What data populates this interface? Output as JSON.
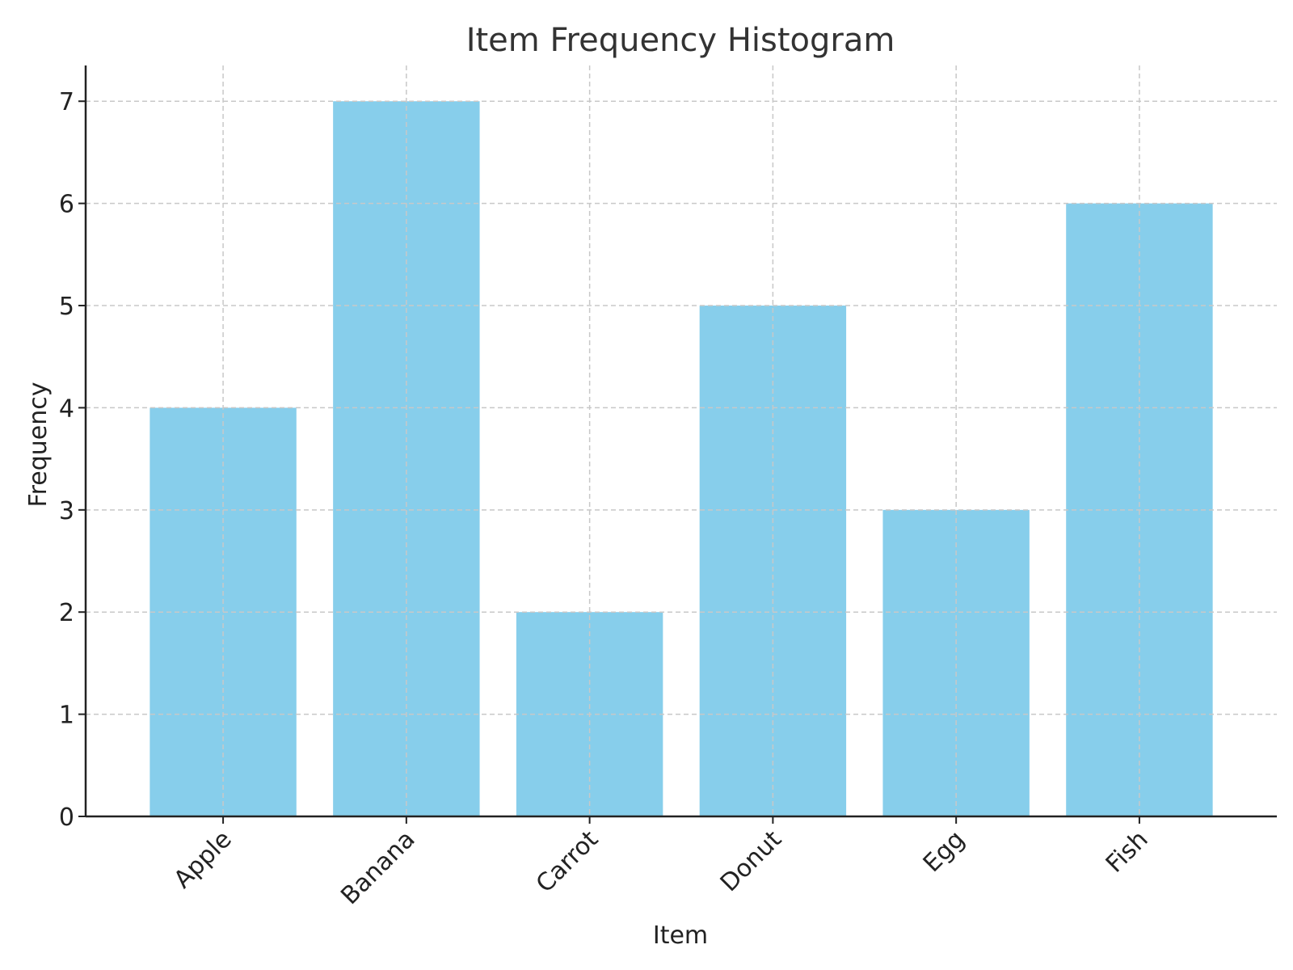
{
  "chart_data": {
    "type": "bar",
    "title": "Item Frequency Histogram",
    "xlabel": "Item",
    "ylabel": "Frequency",
    "categories": [
      "Apple",
      "Banana",
      "Carrot",
      "Donut",
      "Egg",
      "Fish"
    ],
    "values": [
      4,
      7,
      2,
      5,
      3,
      6
    ],
    "ylim": [
      0,
      7.35
    ],
    "yticks": [
      0,
      1,
      2,
      3,
      4,
      5,
      6,
      7
    ],
    "grid": true,
    "bar_color": "#87CEEB"
  }
}
